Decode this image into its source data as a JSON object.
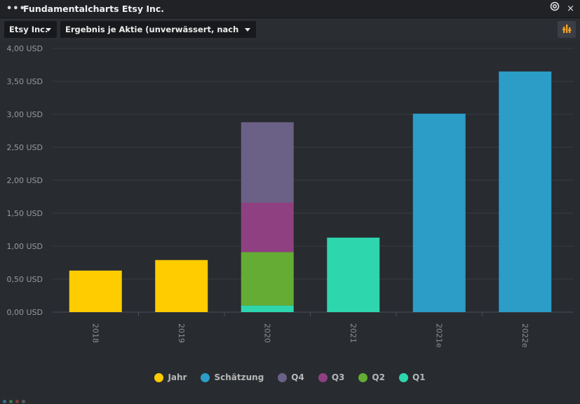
{
  "window": {
    "title": "Fundamentalcharts Etsy Inc.",
    "menu_icon": "more-horizontal-icon",
    "pin_icon": "target-icon",
    "close_glyph": "×"
  },
  "toolbar": {
    "company_select": "Etsy Inc.",
    "metric_select": "Ergebnis je Aktie (unverwässert, nach Steuern)",
    "settings_icon": "chart-settings-icon"
  },
  "chart_data": {
    "type": "bar",
    "stacked": true,
    "categories": [
      "2018",
      "2019",
      "2020",
      "2021",
      "2021e",
      "2022e"
    ],
    "y_ticks": [
      "0,00 USD",
      "0,50 USD",
      "1,00 USD",
      "1,50 USD",
      "2,00 USD",
      "2,50 USD",
      "3,00 USD",
      "3,50 USD",
      "4,00 USD"
    ],
    "ylim": [
      0,
      4
    ],
    "grid": true,
    "legend_position": "bottom",
    "series": [
      {
        "name": "Jahr",
        "color": "#ffcc00",
        "values": [
          0.63,
          0.79,
          0,
          0,
          0,
          0
        ]
      },
      {
        "name": "Schätzung",
        "color": "#2b9dc7",
        "values": [
          0,
          0,
          0,
          0,
          3.01,
          3.65
        ]
      },
      {
        "name": "Q4",
        "color": "#6b6186",
        "values": [
          0,
          0,
          1.22,
          0,
          0,
          0
        ]
      },
      {
        "name": "Q3",
        "color": "#8f4081",
        "values": [
          0,
          0,
          0.75,
          0,
          0,
          0
        ]
      },
      {
        "name": "Q2",
        "color": "#64ac33",
        "values": [
          0,
          0,
          0.81,
          0,
          0,
          0
        ]
      },
      {
        "name": "Q1",
        "color": "#2ed6ae",
        "values": [
          0,
          0,
          0.1,
          1.13,
          0,
          0
        ]
      }
    ],
    "stack_order": [
      "Q1",
      "Q2",
      "Q3",
      "Q4",
      "Jahr",
      "Schätzung"
    ]
  },
  "status_colors": [
    "#3a6d8c",
    "#3b7a4a",
    "#7a3b3b",
    "#5a5a5a"
  ]
}
